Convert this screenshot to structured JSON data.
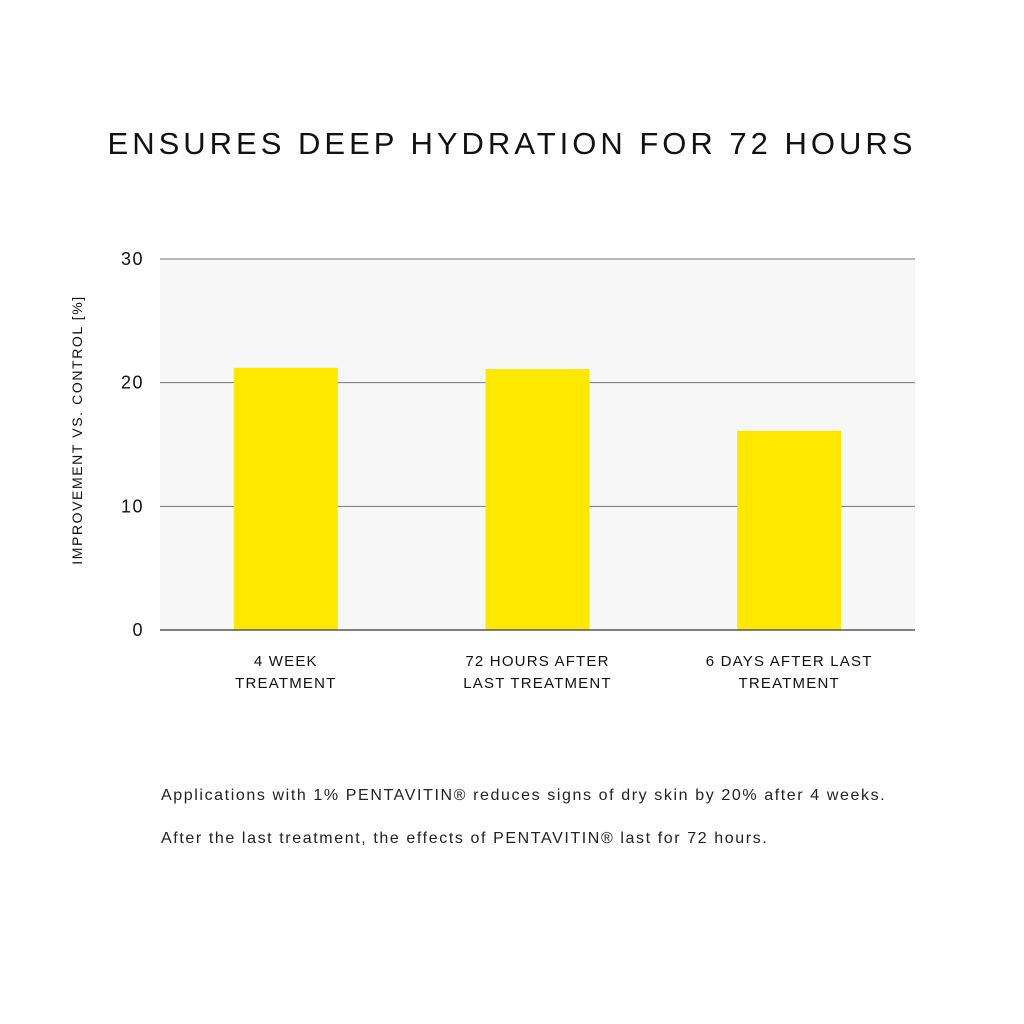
{
  "chart_data": {
    "type": "bar",
    "title": "ENSURES DEEP HYDRATION FOR 72 HOURS",
    "ylabel": "IMPROVEMENT VS. CONTROL [%]",
    "xlabel": "",
    "ylim": [
      0,
      30
    ],
    "yticks": [
      0,
      10,
      20,
      30
    ],
    "grid": true,
    "legend": "none",
    "categories": [
      [
        "4 WEEK",
        "TREATMENT"
      ],
      [
        "72 HOURS AFTER",
        "LAST TREATMENT"
      ],
      [
        "6 DAYS AFTER LAST",
        "TREATMENT"
      ]
    ],
    "values": [
      21.2,
      21.1,
      16.1
    ],
    "colors": {
      "bar": "#ffe800",
      "plot_background": "#f7f7f7",
      "grid": "#777777"
    }
  },
  "notes": [
    "Applications with 1% PENTAVITIN® reduces signs of dry skin by 20% after 4 weeks.",
    "After the last treatment, the effects of PENTAVITIN® last for 72 hours."
  ]
}
